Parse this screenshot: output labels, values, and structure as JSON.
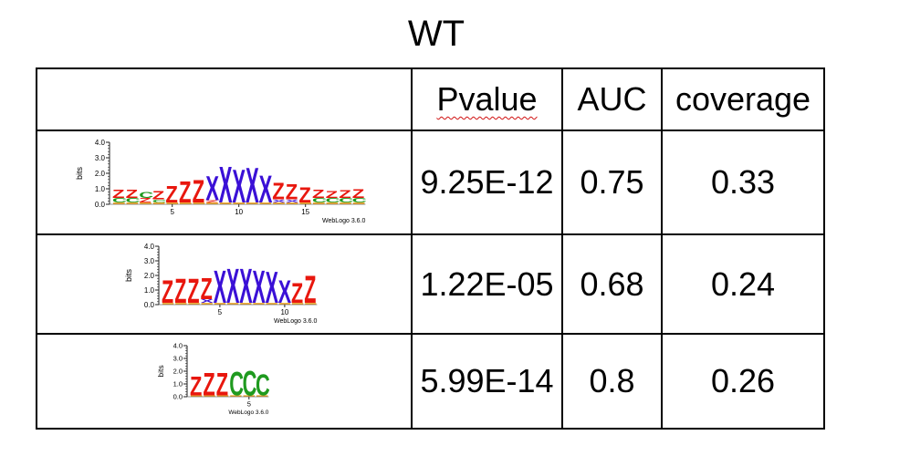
{
  "title": "WT",
  "headers": {
    "logo": "",
    "pvalue": "Pvalue",
    "auc": "AUC",
    "coverage": "coverage"
  },
  "rows": [
    {
      "pvalue": "9.25E-12",
      "auc": "0.75",
      "coverage": "0.33",
      "logo": {
        "ylabel": "bits",
        "yticks": [
          "4.0",
          "3.0",
          "2.0",
          "1.0",
          "0.0"
        ],
        "xticks": [
          "5",
          "10",
          "15"
        ],
        "credit": "WebLogo 3.6.0",
        "stacks": [
          [
            [
              "Z",
              0.55
            ],
            [
              "C",
              0.3
            ]
          ],
          [
            [
              "Z",
              0.55
            ],
            [
              "C",
              0.3
            ]
          ],
          [
            [
              "C",
              0.4
            ],
            [
              "Z",
              0.3
            ]
          ],
          [
            [
              "Z",
              0.55
            ],
            [
              "C",
              0.2
            ]
          ],
          [
            [
              "Z",
              1.1
            ]
          ],
          [
            [
              "Z",
              1.4
            ]
          ],
          [
            [
              "Z",
              1.5
            ]
          ],
          [
            [
              "X",
              1.6
            ],
            [
              "Z",
              0.15
            ]
          ],
          [
            [
              "X",
              2.4
            ]
          ],
          [
            [
              "X",
              2.2
            ]
          ],
          [
            [
              "X",
              2.3
            ]
          ],
          [
            [
              "X",
              1.8
            ]
          ],
          [
            [
              "Z",
              1.1
            ],
            [
              "X",
              0.2
            ]
          ],
          [
            [
              "Z",
              1.0
            ],
            [
              "X",
              0.2
            ]
          ],
          [
            [
              "Z",
              1.0
            ]
          ],
          [
            [
              "Z",
              0.55
            ],
            [
              "C",
              0.3
            ]
          ],
          [
            [
              "Z",
              0.45
            ],
            [
              "C",
              0.3
            ]
          ],
          [
            [
              "Z",
              0.5
            ],
            [
              "C",
              0.3
            ]
          ],
          [
            [
              "Z",
              0.6
            ],
            [
              "C",
              0.3
            ]
          ]
        ]
      }
    },
    {
      "pvalue": "1.22E-05",
      "auc": "0.68",
      "coverage": "0.24",
      "logo": {
        "ylabel": "bits",
        "yticks": [
          "4.0",
          "3.0",
          "2.0",
          "1.0",
          "0.0"
        ],
        "xticks": [
          "5",
          "10"
        ],
        "credit": "WebLogo 3.6.0",
        "stacks": [
          [
            [
              "Z",
              1.6
            ]
          ],
          [
            [
              "Z",
              1.7
            ]
          ],
          [
            [
              "Z",
              1.7
            ]
          ],
          [
            [
              "Z",
              1.5
            ],
            [
              "X",
              0.25
            ]
          ],
          [
            [
              "X",
              2.3
            ]
          ],
          [
            [
              "X",
              2.4
            ]
          ],
          [
            [
              "X",
              2.4
            ]
          ],
          [
            [
              "X",
              2.3
            ]
          ],
          [
            [
              "X",
              2.2
            ]
          ],
          [
            [
              "X",
              1.6
            ]
          ],
          [
            [
              "Z",
              1.4
            ]
          ],
          [
            [
              "Z",
              1.9
            ]
          ]
        ]
      }
    },
    {
      "pvalue": "5.99E-14",
      "auc": "0.8",
      "coverage": "0.26",
      "logo": {
        "ylabel": "bits",
        "yticks": [
          "4.0",
          "3.0",
          "2.0",
          "1.0",
          "0.0"
        ],
        "xticks": [
          "5"
        ],
        "credit": "WebLogo 3.6.0",
        "stacks": [
          [
            [
              "Z",
              1.5
            ]
          ],
          [
            [
              "Z",
              1.8
            ]
          ],
          [
            [
              "Z",
              1.8
            ]
          ],
          [
            [
              "C",
              1.9
            ]
          ],
          [
            [
              "C",
              2.0
            ]
          ],
          [
            [
              "C",
              1.7
            ]
          ]
        ]
      }
    }
  ],
  "colors": {
    "Z": "#e8170e",
    "C": "#1f9a1f",
    "X": "#3a10d6",
    "minor": "#f2a31b"
  }
}
